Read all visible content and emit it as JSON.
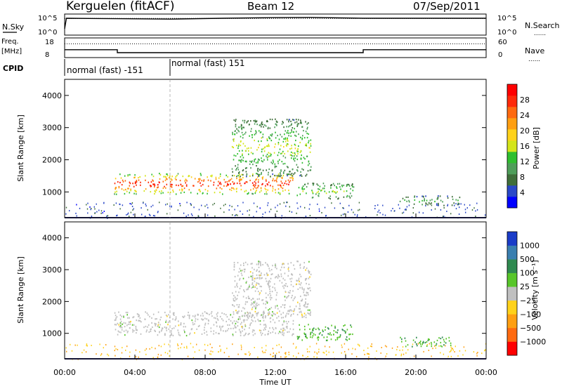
{
  "header": {
    "radar": "Kerguelen (fitACF)",
    "beam": "Beam 12",
    "date": "07/Sep/2011"
  },
  "labels": {
    "nsky": "N.Sky",
    "nsearch": "N.Search",
    "freq_top": "Freq.",
    "freq_unit": "[MHz]",
    "nave": "Nave",
    "cpid": "CPID",
    "dotted_legend": "......",
    "nsky_ticks": [
      "10^5",
      "10^0"
    ],
    "nsearch_ticks": [
      "10^5",
      "10^0"
    ],
    "freq_ticks": [
      "18",
      "8"
    ],
    "nave_ticks": [
      "60",
      "0"
    ]
  },
  "cpid_segments": [
    {
      "label": "normal (fast) -151",
      "start_hour": 0,
      "end_hour": 6
    },
    {
      "label": "normal (fast) 151",
      "start_hour": 6,
      "end_hour": 24
    }
  ],
  "chart_data": [
    {
      "type": "line",
      "name": "noise",
      "x_range_hours": [
        0,
        24
      ],
      "series": [
        {
          "name": "N.Sky",
          "x": [
            0,
            0.1,
            3,
            6,
            9,
            12,
            14,
            17,
            20,
            24
          ],
          "values": [
            0.3,
            0.8,
            0.78,
            0.76,
            0.8,
            0.83,
            0.84,
            0.8,
            0.8,
            0.8
          ]
        },
        {
          "name": "N.Search",
          "x": [
            0,
            24
          ],
          "values": [
            0.79,
            0.79
          ]
        }
      ]
    },
    {
      "type": "line",
      "name": "frequency and nave",
      "x_range_hours": [
        0,
        24
      ],
      "yleft": [
        8,
        18
      ],
      "yright": [
        0,
        60
      ],
      "series": [
        {
          "name": "Freq.",
          "x": [
            0,
            3,
            3,
            17,
            17,
            24
          ],
          "values": [
            12,
            12,
            10.5,
            10.5,
            12,
            12
          ]
        },
        {
          "name": "Nave",
          "x": [
            0,
            24
          ],
          "values": [
            42,
            42
          ]
        }
      ]
    },
    {
      "type": "heatmap",
      "name": "power",
      "xlabel": "",
      "ylabel": "Slant Range [km]",
      "xlim_hours": [
        0,
        24
      ],
      "ylim_km": [
        200,
        4500
      ],
      "yticks": [
        1000,
        2000,
        3000,
        4000
      ],
      "colorbar": {
        "label": "Power [dB]",
        "range": [
          0,
          32
        ],
        "ticks": [
          4,
          8,
          12,
          16,
          20,
          24,
          28
        ],
        "colors": [
          "#0000ff",
          "#2a48c8",
          "#3f6e3a",
          "#4f9e5a",
          "#2fbf2f",
          "#d4e51a",
          "#ffd21a",
          "#ff9f12",
          "#ff6a10",
          "#ff2a0a",
          "#ff0000"
        ]
      },
      "features": [
        {
          "t0": 2.8,
          "t1": 13.0,
          "r0": 950,
          "r1": 1600,
          "peak_db": 28
        },
        {
          "t0": 9.5,
          "t1": 14.0,
          "r0": 1500,
          "r1": 3300,
          "peak_db": 14
        },
        {
          "t0": 13.2,
          "t1": 16.5,
          "r0": 800,
          "r1": 1300,
          "peak_db": 14
        },
        {
          "t0": 19.0,
          "t1": 22.5,
          "r0": 600,
          "r1": 900,
          "peak_db": 10
        }
      ]
    },
    {
      "type": "heatmap",
      "name": "velocity",
      "xlabel": "Time UT",
      "ylabel": "Slant Range [km]",
      "xlim_hours": [
        0,
        24
      ],
      "ylim_km": [
        200,
        4500
      ],
      "yticks": [
        1000,
        2000,
        3000,
        4000
      ],
      "xticks": [
        "00:00",
        "04:00",
        "08:00",
        "12:00",
        "16:00",
        "20:00",
        "00:00"
      ],
      "colorbar": {
        "label": "Velocity [m s⁻¹]",
        "ticks": [
          "1000",
          "500",
          "100",
          "25",
          "−25",
          "−100",
          "−500",
          "−1000"
        ],
        "colors": [
          "#1a3cc8",
          "#3a7fb0",
          "#2f8a50",
          "#58c62a",
          "#c0c0c0",
          "#ffd21a",
          "#ff9f12",
          "#ff6a10",
          "#ff0000"
        ]
      },
      "features": [
        {
          "t0": 2.8,
          "t1": 13.0,
          "r0": 950,
          "r1": 1700,
          "v": 0
        },
        {
          "t0": 9.5,
          "t1": 14.0,
          "r0": 1500,
          "r1": 3300,
          "v": 0
        },
        {
          "t0": 13.2,
          "t1": 16.5,
          "r0": 800,
          "r1": 1300,
          "v": 100
        },
        {
          "t0": 19.0,
          "t1": 22.0,
          "r0": 600,
          "r1": 900,
          "v": 100
        }
      ]
    }
  ]
}
